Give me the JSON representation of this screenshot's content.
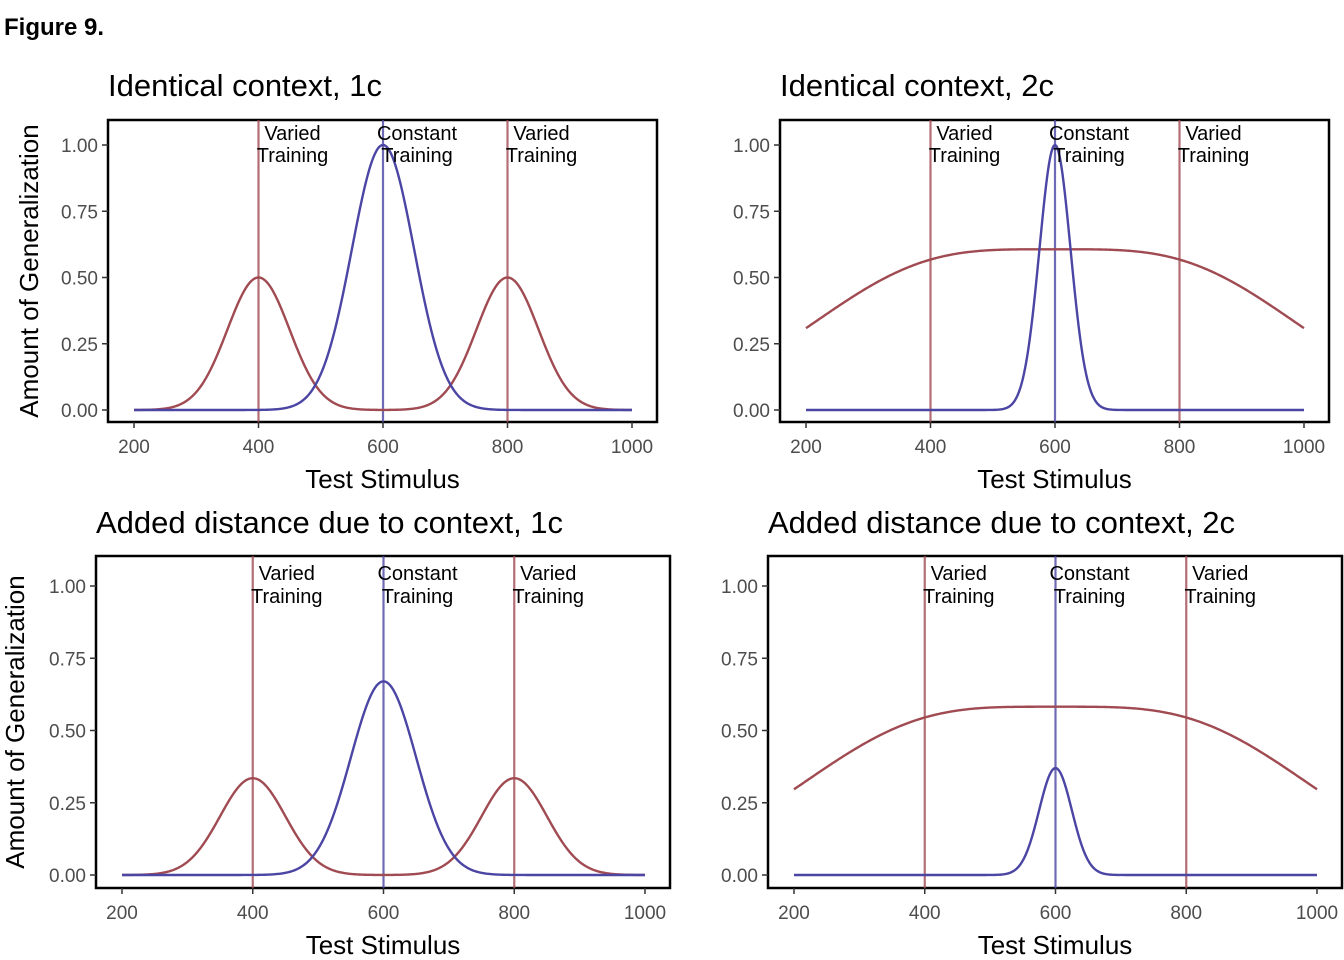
{
  "figure_label": "Figure 9.",
  "colors": {
    "varied": "#a04a52",
    "constant": "#4b45a4"
  },
  "chart_data": [
    {
      "type": "line",
      "title": "Identical context, 1c",
      "xlabel": "Test Stimulus",
      "ylabel": "Amount of Generalization",
      "xlim": [
        200,
        1000
      ],
      "ylim": [
        0,
        1
      ],
      "xticks": [
        200,
        400,
        600,
        800,
        1000
      ],
      "yticks": [
        "0.00",
        "0.25",
        "0.50",
        "0.75",
        "1.00"
      ],
      "grid": false,
      "training_lines": [
        {
          "x": 400,
          "series": "varied",
          "label": [
            "Varied",
            "Training"
          ]
        },
        {
          "x": 600,
          "series": "constant",
          "label": [
            "Constant",
            "Training"
          ]
        },
        {
          "x": 800,
          "series": "varied",
          "label": [
            "Varied",
            "Training"
          ]
        }
      ],
      "series": [
        {
          "key": "varied",
          "centers": [
            400,
            800
          ],
          "peak": 0.5,
          "width": 50
        },
        {
          "key": "constant",
          "centers": [
            600
          ],
          "peak": 1.0,
          "width": 50
        }
      ]
    },
    {
      "type": "line",
      "title": "Identical context, 2c",
      "xlabel": "Test Stimulus",
      "ylabel": "",
      "xlim": [
        200,
        1000
      ],
      "ylim": [
        0,
        1
      ],
      "xticks": [
        200,
        400,
        600,
        800,
        1000
      ],
      "yticks": [
        "0.00",
        "0.25",
        "0.50",
        "0.75",
        "1.00"
      ],
      "grid": false,
      "training_lines": [
        {
          "x": 400,
          "series": "varied",
          "label": [
            "Varied",
            "Training"
          ]
        },
        {
          "x": 600,
          "series": "constant",
          "label": [
            "Constant",
            "Training"
          ]
        },
        {
          "x": 800,
          "series": "varied",
          "label": [
            "Varied",
            "Training"
          ]
        }
      ],
      "series": [
        {
          "key": "varied",
          "centers": [
            400,
            800
          ],
          "peak": 0.5,
          "width": 200
        },
        {
          "key": "constant",
          "centers": [
            600
          ],
          "peak": 1.0,
          "width": 25
        }
      ]
    },
    {
      "type": "line",
      "title": "Added distance due to context, 1c",
      "xlabel": "Test Stimulus",
      "ylabel": "Amount of Generalization",
      "xlim": [
        200,
        1000
      ],
      "ylim": [
        0,
        1
      ],
      "xticks": [
        200,
        400,
        600,
        800,
        1000
      ],
      "yticks": [
        "0.00",
        "0.25",
        "0.50",
        "0.75",
        "1.00"
      ],
      "grid": false,
      "training_lines": [
        {
          "x": 400,
          "series": "varied",
          "label": [
            "Varied",
            "Training"
          ]
        },
        {
          "x": 600,
          "series": "constant",
          "label": [
            "Constant",
            "Training"
          ]
        },
        {
          "x": 800,
          "series": "varied",
          "label": [
            "Varied",
            "Training"
          ]
        }
      ],
      "series": [
        {
          "key": "varied",
          "centers": [
            400,
            800
          ],
          "peak": 0.335,
          "width": 50
        },
        {
          "key": "constant",
          "centers": [
            600
          ],
          "peak": 0.67,
          "width": 50
        }
      ]
    },
    {
      "type": "line",
      "title": "Added distance due to context, 2c",
      "xlabel": "Test Stimulus",
      "ylabel": "",
      "xlim": [
        200,
        1000
      ],
      "ylim": [
        0,
        1
      ],
      "xticks": [
        200,
        400,
        600,
        800,
        1000
      ],
      "yticks": [
        "0.00",
        "0.25",
        "0.50",
        "0.75",
        "1.00"
      ],
      "grid": false,
      "training_lines": [
        {
          "x": 400,
          "series": "varied",
          "label": [
            "Varied",
            "Training"
          ]
        },
        {
          "x": 600,
          "series": "constant",
          "label": [
            "Constant",
            "Training"
          ]
        },
        {
          "x": 800,
          "series": "varied",
          "label": [
            "Varied",
            "Training"
          ]
        }
      ],
      "series": [
        {
          "key": "varied",
          "centers": [
            400,
            800
          ],
          "peak": 0.48,
          "width": 200
        },
        {
          "key": "constant",
          "centers": [
            600
          ],
          "peak": 0.37,
          "width": 25
        }
      ]
    }
  ]
}
